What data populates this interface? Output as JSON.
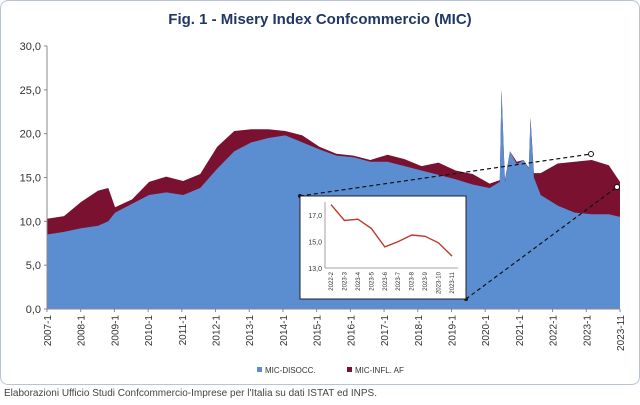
{
  "title": "Fig. 1 - Misery Index Confcommercio (MIC)",
  "footer": "Elaborazioni Ufficio Studi Confcommercio-Imprese per l'Italia su dati ISTAT ed INPS.",
  "colors": {
    "disocc": "#5b8ed0",
    "infl": "#7b1130",
    "title": "#1f3864",
    "inset_line": "#c0392b"
  },
  "chart_data": [
    {
      "type": "area",
      "title": "Fig. 1 - Misery Index Confcommercio (MIC)",
      "ylim": [
        0,
        30
      ],
      "yticks": [
        "0,0",
        "5,0",
        "10,0",
        "15,0",
        "20,0",
        "25,0",
        "30,0"
      ],
      "xticks": [
        "2007-1",
        "2008-1",
        "2009-1",
        "2010-1",
        "2011-1",
        "2012-1",
        "2013-1",
        "2014-1",
        "2015-1",
        "2016-1",
        "2017-1",
        "2018-1",
        "2019-1",
        "2020-1",
        "2021-1",
        "2022-1",
        "2023-1",
        "2023-11"
      ],
      "legend": [
        "MIC-DISOCC.",
        "MIC-INFL. AF"
      ],
      "legend_position": "bottom",
      "stacked": true,
      "x": [
        2007.0,
        2007.5,
        2008.0,
        2008.5,
        2008.8,
        2009.0,
        2009.5,
        2010.0,
        2010.5,
        2011.0,
        2011.5,
        2012.0,
        2012.5,
        2013.0,
        2013.5,
        2014.0,
        2014.5,
        2015.0,
        2015.5,
        2016.0,
        2016.5,
        2017.0,
        2017.5,
        2018.0,
        2018.5,
        2019.0,
        2019.5,
        2020.0,
        2020.3,
        2020.35,
        2020.45,
        2020.6,
        2020.8,
        2021.0,
        2021.15,
        2021.2,
        2021.3,
        2021.5,
        2022.0,
        2022.5,
        2023.0,
        2023.5,
        2023.83
      ],
      "series": [
        {
          "name": "MIC-DISOCC.",
          "values": [
            8.5,
            8.8,
            9.2,
            9.5,
            10.0,
            11.0,
            12.0,
            13.0,
            13.3,
            13.0,
            13.8,
            16.0,
            18.0,
            19.0,
            19.5,
            19.8,
            19.0,
            18.2,
            17.5,
            17.3,
            16.8,
            16.8,
            16.3,
            15.8,
            15.3,
            14.8,
            14.2,
            13.8,
            14.5,
            25.0,
            14.5,
            18.0,
            16.5,
            17.0,
            16.0,
            21.8,
            15.0,
            13.0,
            11.8,
            11.0,
            10.8,
            10.8,
            10.5
          ]
        },
        {
          "name": "MIC-INFL. AF",
          "values": [
            1.8,
            1.8,
            3.0,
            4.0,
            3.8,
            0.6,
            0.5,
            1.5,
            1.8,
            1.6,
            1.6,
            2.5,
            2.3,
            1.5,
            1.0,
            0.5,
            0.8,
            0.3,
            0.2,
            0.2,
            0.2,
            0.8,
            0.8,
            0.5,
            1.4,
            1.0,
            1.2,
            0.5,
            0.2,
            0.0,
            0.2,
            0.0,
            0.3,
            0.0,
            0.1,
            0.0,
            0.5,
            2.5,
            4.8,
            5.8,
            6.2,
            5.6,
            4.0
          ]
        }
      ]
    },
    {
      "type": "line",
      "categories": [
        "2022-2",
        "2023-3",
        "2023-4",
        "2023-5",
        "2023-6",
        "2023-7",
        "2023-8",
        "2023-9",
        "2023-10",
        "2023-11"
      ],
      "values": [
        17.8,
        16.6,
        16.7,
        16.0,
        14.6,
        15.0,
        15.5,
        15.4,
        14.9,
        13.9
      ],
      "ylim": [
        13.0,
        18.0
      ],
      "yticks": [
        "13,0",
        "15,0",
        "17,0"
      ]
    }
  ]
}
